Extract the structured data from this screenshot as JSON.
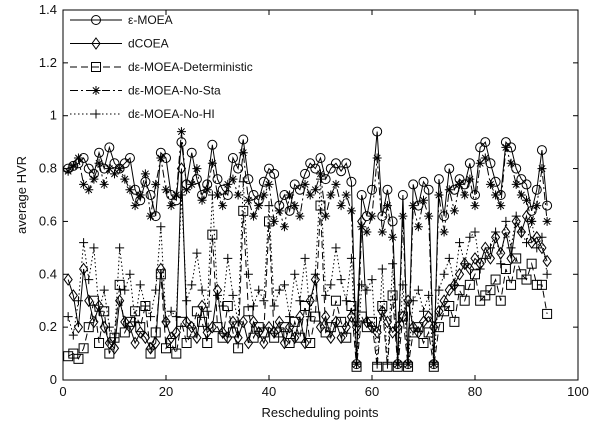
{
  "chart_data": {
    "type": "line",
    "xlabel": "Rescheduling points",
    "ylabel": "average HVR",
    "xlim": [
      0,
      100
    ],
    "ylim": [
      0,
      1.4
    ],
    "xticks": [
      0,
      20,
      40,
      60,
      80,
      100
    ],
    "yticks": [
      0,
      0.2,
      0.4,
      0.6,
      0.8,
      1,
      1.2,
      1.4
    ],
    "xtick_labels": [
      "0",
      "20",
      "40",
      "60",
      "80",
      "100"
    ],
    "ytick_labels": [
      "0",
      "0.2",
      "0.4",
      "0.6",
      "0.8",
      "1",
      "1.2",
      "1.4"
    ],
    "legend_position": "top-left",
    "series": [
      {
        "name": "ε-MOEA",
        "marker": "circle",
        "dash": "solid",
        "x": [
          1,
          2,
          3,
          4,
          5,
          6,
          7,
          8,
          9,
          10,
          11,
          12,
          13,
          14,
          15,
          16,
          17,
          18,
          19,
          20,
          21,
          22,
          23,
          24,
          25,
          26,
          27,
          28,
          29,
          30,
          31,
          32,
          33,
          34,
          35,
          36,
          37,
          38,
          39,
          40,
          41,
          42,
          43,
          44,
          45,
          46,
          47,
          48,
          49,
          50,
          51,
          52,
          53,
          54,
          55,
          56,
          57,
          58,
          59,
          60,
          61,
          62,
          63,
          64,
          65,
          66,
          67,
          68,
          69,
          70,
          71,
          72,
          73,
          74,
          75,
          76,
          77,
          78,
          79,
          80,
          81,
          82,
          83,
          84,
          85,
          86,
          87,
          88,
          89,
          90,
          91,
          92,
          93,
          94
        ],
        "y": [
          0.8,
          0.81,
          0.82,
          0.84,
          0.8,
          0.78,
          0.86,
          0.8,
          0.88,
          0.82,
          0.8,
          0.82,
          0.84,
          0.72,
          0.68,
          0.75,
          0.7,
          0.62,
          0.86,
          0.84,
          0.7,
          0.68,
          0.9,
          0.74,
          0.86,
          0.76,
          0.7,
          0.74,
          0.89,
          0.76,
          0.72,
          0.7,
          0.84,
          0.8,
          0.91,
          0.76,
          0.7,
          0.68,
          0.75,
          0.8,
          0.78,
          0.66,
          0.7,
          0.64,
          0.74,
          0.72,
          0.78,
          0.82,
          0.8,
          0.84,
          0.76,
          0.8,
          0.82,
          0.79,
          0.82,
          0.75,
          0.06,
          0.7,
          0.62,
          0.72,
          0.94,
          0.62,
          0.72,
          0.6,
          0.06,
          0.7,
          0.06,
          0.74,
          0.66,
          0.75,
          0.72,
          0.06,
          0.76,
          0.62,
          0.8,
          0.72,
          0.76,
          0.74,
          0.82,
          0.7,
          0.88,
          0.9,
          0.82,
          0.75,
          0.7,
          0.9,
          0.88,
          0.8,
          0.76,
          0.74,
          0.64,
          0.72,
          0.87,
          0.66
        ]
      },
      {
        "name": "dCOEA",
        "marker": "diamond",
        "dash": "solid",
        "x": [
          1,
          2,
          3,
          4,
          5,
          6,
          7,
          8,
          9,
          10,
          11,
          12,
          13,
          14,
          15,
          16,
          17,
          18,
          19,
          20,
          21,
          22,
          23,
          24,
          25,
          26,
          27,
          28,
          29,
          30,
          31,
          32,
          33,
          34,
          35,
          36,
          37,
          38,
          39,
          40,
          41,
          42,
          43,
          44,
          45,
          46,
          47,
          48,
          49,
          50,
          51,
          52,
          53,
          54,
          55,
          56,
          57,
          58,
          59,
          60,
          61,
          62,
          63,
          64,
          65,
          66,
          67,
          68,
          69,
          70,
          71,
          72,
          73,
          74,
          75,
          76,
          77,
          78,
          79,
          80,
          81,
          82,
          83,
          84,
          85,
          86,
          87,
          88,
          89,
          90,
          91,
          92,
          93,
          94
        ],
        "y": [
          0.38,
          0.32,
          0.2,
          0.42,
          0.3,
          0.22,
          0.28,
          0.2,
          0.14,
          0.12,
          0.3,
          0.22,
          0.2,
          0.14,
          0.18,
          0.16,
          0.12,
          0.14,
          0.42,
          0.22,
          0.16,
          0.18,
          0.8,
          0.22,
          0.2,
          0.16,
          0.28,
          0.18,
          0.2,
          0.34,
          0.18,
          0.16,
          0.22,
          0.16,
          0.22,
          0.14,
          0.22,
          0.18,
          0.14,
          0.2,
          0.18,
          0.22,
          0.14,
          0.2,
          0.16,
          0.24,
          0.14,
          0.3,
          0.38,
          0.2,
          0.24,
          0.16,
          0.22,
          0.16,
          0.2,
          0.24,
          0.2,
          0.6,
          0.22,
          0.2,
          0.18,
          0.26,
          0.22,
          0.18,
          0.2,
          0.24,
          0.3,
          0.2,
          0.18,
          0.22,
          0.24,
          0.2,
          0.26,
          0.3,
          0.34,
          0.36,
          0.4,
          0.44,
          0.42,
          0.46,
          0.44,
          0.5,
          0.46,
          0.54,
          0.48,
          0.56,
          0.46,
          0.6,
          0.56,
          0.62,
          0.52,
          0.54,
          0.5,
          0.45
        ]
      },
      {
        "name": "dε-MOEA-Deterministic",
        "marker": "square",
        "dash": "dashed",
        "x": [
          1,
          2,
          3,
          4,
          5,
          6,
          7,
          8,
          9,
          10,
          11,
          12,
          13,
          14,
          15,
          16,
          17,
          18,
          19,
          20,
          21,
          22,
          23,
          24,
          25,
          26,
          27,
          28,
          29,
          30,
          31,
          32,
          33,
          34,
          35,
          36,
          37,
          38,
          39,
          40,
          41,
          42,
          43,
          44,
          45,
          46,
          47,
          48,
          49,
          50,
          51,
          52,
          53,
          54,
          55,
          56,
          57,
          58,
          59,
          60,
          61,
          62,
          63,
          64,
          65,
          66,
          67,
          68,
          69,
          70,
          71,
          72,
          73,
          74,
          75,
          76,
          77,
          78,
          79,
          80,
          81,
          82,
          83,
          84,
          85,
          86,
          87,
          88,
          89,
          90,
          91,
          92,
          93,
          94
        ],
        "y": [
          0.09,
          0.1,
          0.08,
          0.12,
          0.2,
          0.3,
          0.14,
          0.26,
          0.1,
          0.16,
          0.36,
          0.18,
          0.22,
          0.26,
          0.2,
          0.28,
          0.1,
          0.18,
          0.4,
          0.12,
          0.14,
          0.1,
          0.22,
          0.14,
          0.18,
          0.26,
          0.22,
          0.14,
          0.55,
          0.2,
          0.16,
          0.28,
          0.18,
          0.12,
          0.64,
          0.26,
          0.16,
          0.2,
          0.18,
          0.6,
          0.16,
          0.18,
          0.2,
          0.14,
          0.22,
          0.16,
          0.28,
          0.14,
          0.24,
          0.66,
          0.18,
          0.2,
          0.3,
          0.22,
          0.16,
          0.28,
          0.05,
          0.24,
          0.2,
          0.22,
          0.05,
          0.28,
          0.05,
          0.32,
          0.05,
          0.24,
          0.05,
          0.18,
          0.2,
          0.14,
          0.18,
          0.05,
          0.2,
          0.26,
          0.28,
          0.22,
          0.34,
          0.3,
          0.36,
          0.4,
          0.3,
          0.32,
          0.34,
          0.38,
          0.3,
          0.42,
          0.36,
          0.46,
          0.4,
          0.38,
          0.44,
          0.36,
          0.36,
          0.25
        ]
      },
      {
        "name": "dε-MOEA-No-Sta",
        "marker": "star",
        "dash": "dashdot",
        "x": [
          1,
          2,
          3,
          4,
          5,
          6,
          7,
          8,
          9,
          10,
          11,
          12,
          13,
          14,
          15,
          16,
          17,
          18,
          19,
          20,
          21,
          22,
          23,
          24,
          25,
          26,
          27,
          28,
          29,
          30,
          31,
          32,
          33,
          34,
          35,
          36,
          37,
          38,
          39,
          40,
          41,
          42,
          43,
          44,
          45,
          46,
          47,
          48,
          49,
          50,
          51,
          52,
          53,
          54,
          55,
          56,
          57,
          58,
          59,
          60,
          61,
          62,
          63,
          64,
          65,
          66,
          67,
          68,
          69,
          70,
          71,
          72,
          73,
          74,
          75,
          76,
          77,
          78,
          79,
          80,
          81,
          82,
          83,
          84,
          85,
          86,
          87,
          88,
          89,
          90,
          91,
          92,
          93,
          94
        ],
        "y": [
          0.79,
          0.81,
          0.84,
          0.74,
          0.72,
          0.76,
          0.82,
          0.74,
          0.8,
          0.78,
          0.8,
          0.76,
          0.72,
          0.66,
          0.7,
          0.78,
          0.62,
          0.74,
          0.84,
          0.72,
          0.66,
          0.7,
          0.94,
          0.72,
          0.74,
          0.8,
          0.68,
          0.72,
          0.82,
          0.7,
          0.66,
          0.74,
          0.76,
          0.7,
          0.86,
          0.68,
          0.62,
          0.66,
          0.7,
          0.74,
          0.6,
          0.64,
          0.58,
          0.7,
          0.66,
          0.62,
          0.74,
          0.7,
          0.72,
          0.78,
          0.62,
          0.7,
          0.74,
          0.66,
          0.7,
          0.64,
          0.06,
          0.58,
          0.56,
          0.62,
          0.84,
          0.56,
          0.66,
          0.54,
          0.06,
          0.62,
          0.06,
          0.66,
          0.58,
          0.68,
          0.62,
          0.06,
          0.7,
          0.56,
          0.72,
          0.64,
          0.74,
          0.7,
          0.76,
          0.66,
          0.82,
          0.84,
          0.74,
          0.7,
          0.66,
          0.88,
          0.82,
          0.74,
          0.7,
          0.68,
          0.6,
          0.66,
          0.8,
          0.6
        ]
      },
      {
        "name": "dε-MOEA-No-HI",
        "marker": "plus",
        "dash": "dotted",
        "x": [
          1,
          2,
          3,
          4,
          5,
          6,
          7,
          8,
          9,
          10,
          11,
          12,
          13,
          14,
          15,
          16,
          17,
          18,
          19,
          20,
          21,
          22,
          23,
          24,
          25,
          26,
          27,
          28,
          29,
          30,
          31,
          32,
          33,
          34,
          35,
          36,
          37,
          38,
          39,
          40,
          41,
          42,
          43,
          44,
          45,
          46,
          47,
          48,
          49,
          50,
          51,
          52,
          53,
          54,
          55,
          56,
          57,
          58,
          59,
          60,
          61,
          62,
          63,
          64,
          65,
          66,
          67,
          68,
          69,
          70,
          71,
          72,
          73,
          74,
          75,
          76,
          77,
          78,
          79,
          80,
          81,
          82,
          83,
          84,
          85,
          86,
          87,
          88,
          89,
          90,
          91,
          92,
          93,
          94
        ],
        "y": [
          0.24,
          0.17,
          0.3,
          0.52,
          0.38,
          0.5,
          0.26,
          0.34,
          0.2,
          0.16,
          0.5,
          0.34,
          0.4,
          0.22,
          0.36,
          0.28,
          0.24,
          0.34,
          0.58,
          0.22,
          0.26,
          0.24,
          0.7,
          0.3,
          0.36,
          0.48,
          0.34,
          0.26,
          0.7,
          0.32,
          0.28,
          0.46,
          0.32,
          0.22,
          0.75,
          0.4,
          0.28,
          0.34,
          0.3,
          0.66,
          0.28,
          0.34,
          0.36,
          0.24,
          0.4,
          0.3,
          0.46,
          0.24,
          0.4,
          0.76,
          0.32,
          0.36,
          0.5,
          0.38,
          0.3,
          0.46,
          0.06,
          0.36,
          0.34,
          0.38,
          0.06,
          0.42,
          0.06,
          0.44,
          0.06,
          0.36,
          0.06,
          0.3,
          0.34,
          0.26,
          0.32,
          0.06,
          0.34,
          0.4,
          0.46,
          0.36,
          0.52,
          0.44,
          0.54,
          0.56,
          0.42,
          0.46,
          0.5,
          0.56,
          0.44,
          0.6,
          0.5,
          0.62,
          0.56,
          0.52,
          0.6,
          0.5,
          0.54,
          0.4
        ]
      }
    ]
  }
}
